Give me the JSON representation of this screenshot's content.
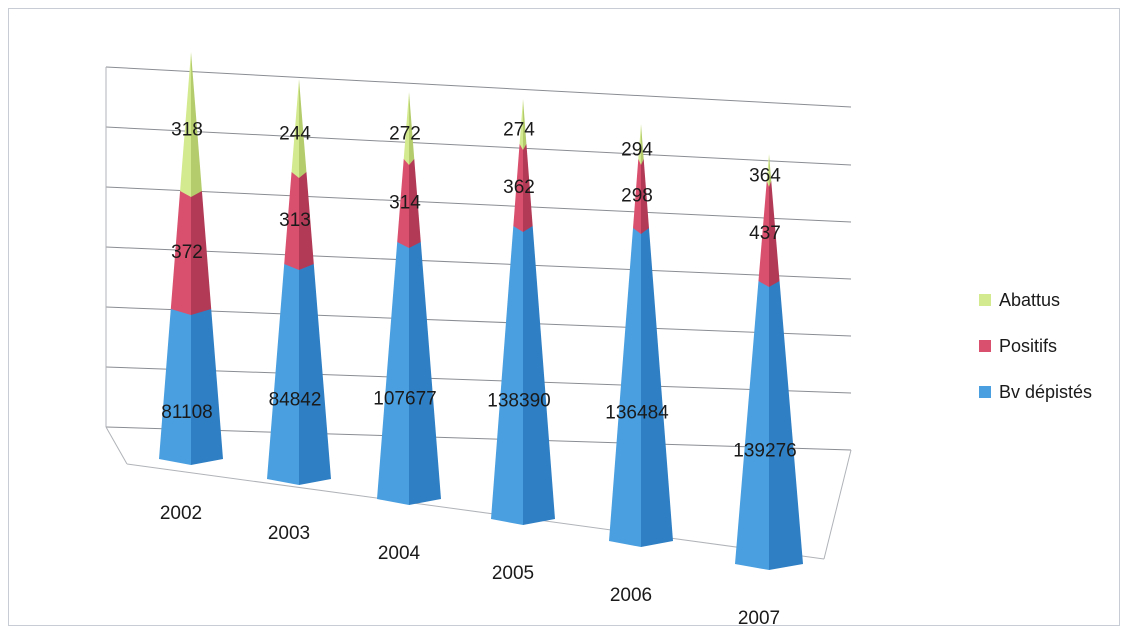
{
  "chart_data": {
    "type": "bar",
    "style": "3d-pyramid-stacked",
    "categories": [
      "2002",
      "2003",
      "2004",
      "2005",
      "2006",
      "2007"
    ],
    "series": [
      {
        "name": "Bv dépistés",
        "color": "#4a9fe0",
        "values": [
          81108,
          84842,
          107677,
          138390,
          136484,
          139276
        ]
      },
      {
        "name": "Positifs",
        "color": "#d9506e",
        "values": [
          372,
          313,
          314,
          362,
          298,
          437
        ]
      },
      {
        "name": "Abattus",
        "color": "#d4ea8e",
        "values": [
          318,
          244,
          272,
          274,
          294,
          364
        ]
      }
    ],
    "legend_order": [
      "Abattus",
      "Positifs",
      "Bv dépistés"
    ],
    "legend_position": "right",
    "grid": true,
    "title": "",
    "xlabel": "",
    "ylabel": ""
  }
}
